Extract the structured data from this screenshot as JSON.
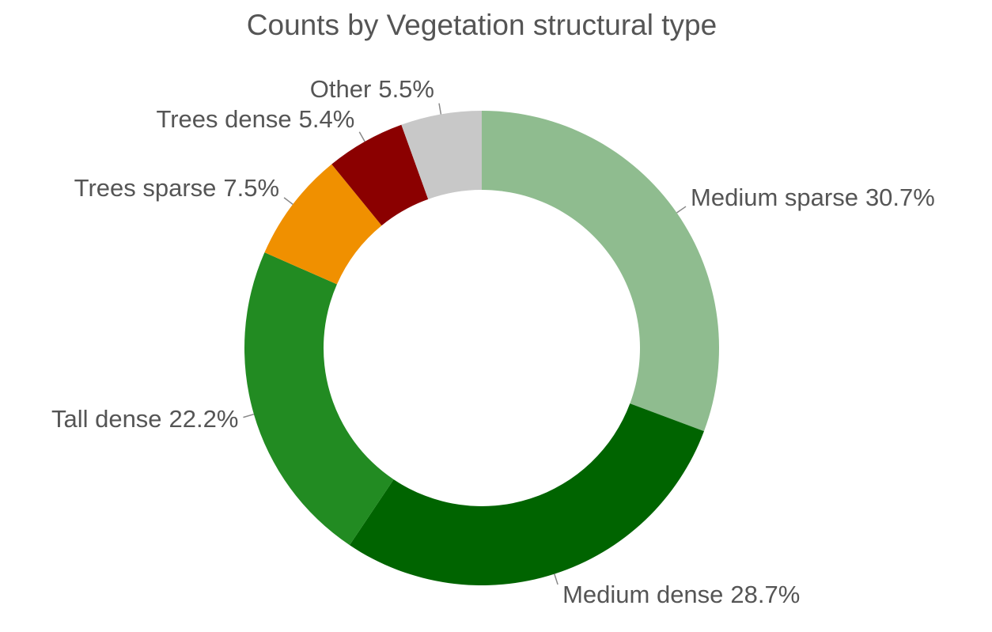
{
  "chart_data": {
    "type": "donut",
    "title": "Counts by Vegetation structural type",
    "categories": [
      "Medium sparse",
      "Medium dense",
      "Tall dense",
      "Trees sparse",
      "Trees dense",
      "Other"
    ],
    "values": [
      30.7,
      28.7,
      22.2,
      7.5,
      5.4,
      5.5
    ],
    "value_labels": [
      "30.7%",
      "28.7%",
      "22.2%",
      "7.5%",
      "5.4%",
      "5.5%"
    ],
    "colors": [
      "#8fbc8f",
      "#006400",
      "#228b22",
      "#f09000",
      "#8b0000",
      "#c8c8c8"
    ]
  }
}
